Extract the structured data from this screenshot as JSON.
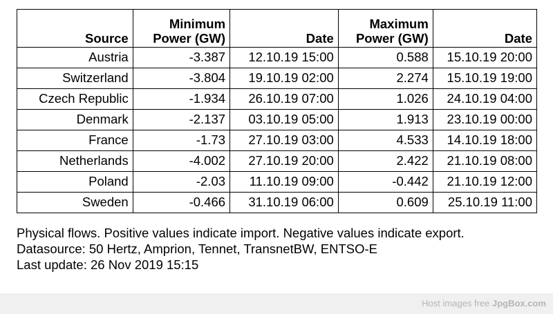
{
  "table": {
    "headers": {
      "source": "Source",
      "min_power_line1": "Minimum",
      "min_power_line2": "Power (GW)",
      "min_date": "Date",
      "max_power_line1": "Maximum",
      "max_power_line2": "Power (GW)",
      "max_date": "Date"
    },
    "rows": [
      {
        "source": "Austria",
        "min_power": "-3.387",
        "min_date": "12.10.19 15:00",
        "max_power": "0.588",
        "max_date": "15.10.19 20:00"
      },
      {
        "source": "Switzerland",
        "min_power": "-3.804",
        "min_date": "19.10.19 02:00",
        "max_power": "2.274",
        "max_date": "15.10.19 19:00"
      },
      {
        "source": "Czech Republic",
        "min_power": "-1.934",
        "min_date": "26.10.19 07:00",
        "max_power": "1.026",
        "max_date": "24.10.19 04:00"
      },
      {
        "source": "Denmark",
        "min_power": "-2.137",
        "min_date": "03.10.19 05:00",
        "max_power": "1.913",
        "max_date": "23.10.19 00:00"
      },
      {
        "source": "France",
        "min_power": "-1.73",
        "min_date": "27.10.19 03:00",
        "max_power": "4.533",
        "max_date": "14.10.19 18:00"
      },
      {
        "source": "Netherlands",
        "min_power": "-4.002",
        "min_date": "27.10.19 20:00",
        "max_power": "2.422",
        "max_date": "21.10.19 08:00"
      },
      {
        "source": "Poland",
        "min_power": "-2.03",
        "min_date": "11.10.19 09:00",
        "max_power": "-0.442",
        "max_date": "21.10.19 12:00"
      },
      {
        "source": "Sweden",
        "min_power": "-0.466",
        "min_date": "31.10.19 06:00",
        "max_power": "0.609",
        "max_date": "25.10.19 11:00"
      }
    ]
  },
  "notes": {
    "line1": "Physical flows. Positive values indicate import. Negative values indicate export.",
    "line2": "Datasource: 50 Hertz, Amprion, Tennet, TransnetBW, ENTSO-E",
    "line3": "Last update: 26 Nov 2019 15:15"
  },
  "footer": {
    "prefix": "Host images free ",
    "brand": "JpgBox.com"
  }
}
